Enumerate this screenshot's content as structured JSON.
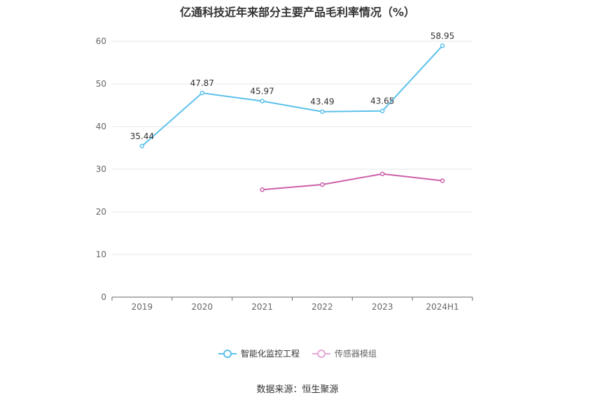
{
  "title": "亿通科技近年来部分主要产品毛利率情况（%）",
  "source": "数据来源：恒生聚源",
  "chart_data": {
    "type": "line",
    "title": "亿通科技近年来部分主要产品毛利率情况（%）",
    "categories": [
      "2019",
      "2020",
      "2021",
      "2022",
      "2023",
      "2024H1"
    ],
    "ylim": [
      0,
      60
    ],
    "yticks": [
      0,
      10,
      20,
      30,
      40,
      50,
      60
    ],
    "grid": true,
    "legend": "bottom",
    "series": [
      {
        "name": "智能化监控工程",
        "color": "#5bc0eb",
        "values": [
          35.44,
          47.87,
          45.97,
          43.49,
          43.65,
          58.95
        ],
        "labels": [
          "35.44",
          "47.87",
          "45.97",
          "43.49",
          "43.65",
          "58.95"
        ]
      },
      {
        "name": "传感器模组",
        "color": "#cc5fa8",
        "values": [
          null,
          null,
          25.2,
          26.4,
          28.9,
          27.3
        ],
        "labels": []
      }
    ]
  }
}
